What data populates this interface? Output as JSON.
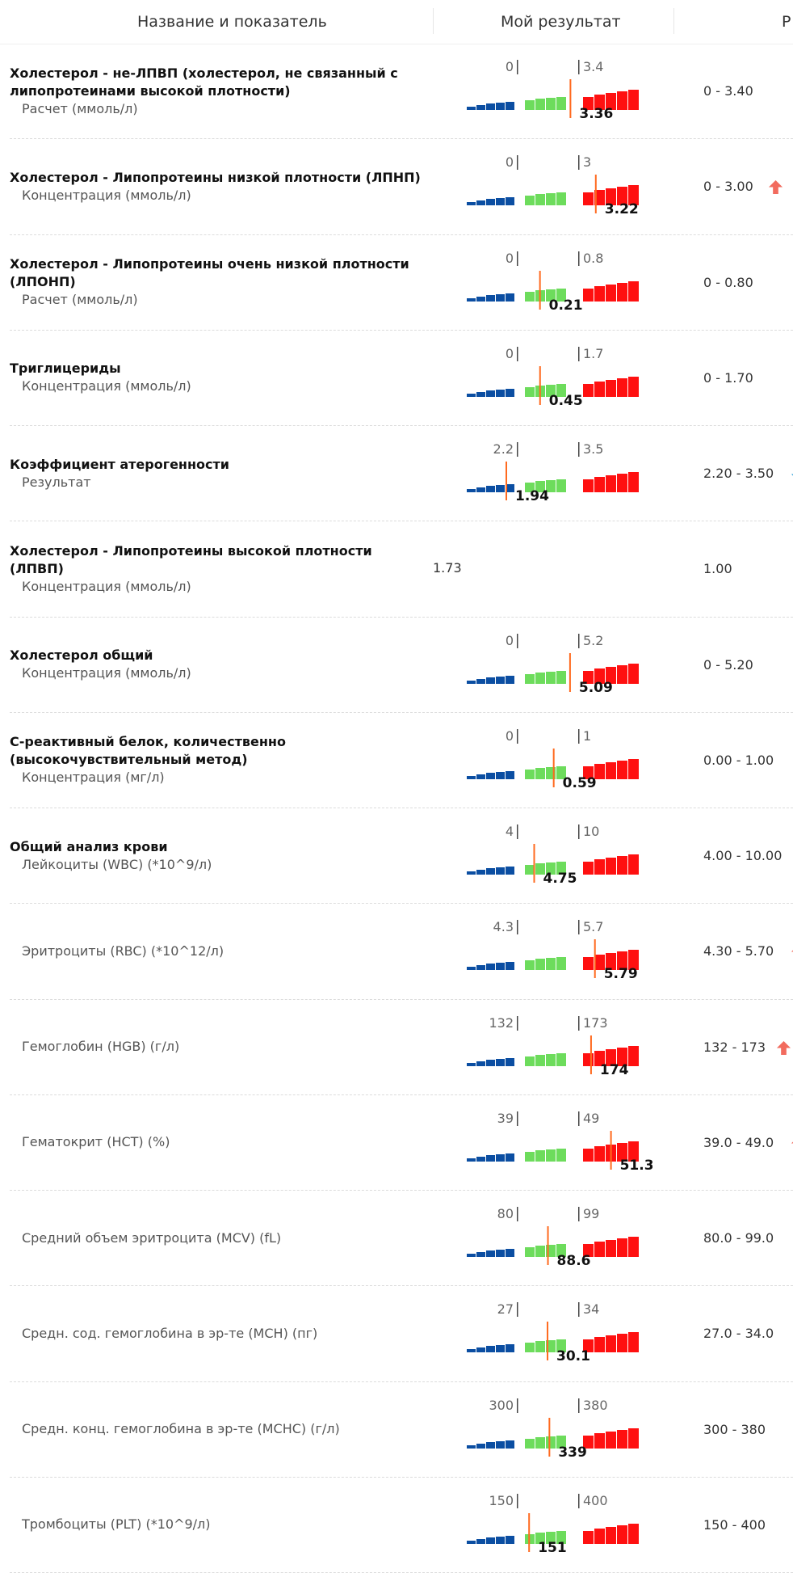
{
  "header": {
    "col_name": "Название и показатель",
    "col_result": "Мой результат",
    "col_ref": "Р"
  },
  "colors": {
    "low": "#0b4ea2",
    "normal": "#6ddc5c",
    "high": "#ff1010",
    "marker": "#ff6a1f",
    "arrow_up": "#f26b5e",
    "arrow_down": "#2a9fd8"
  },
  "rows": [
    {
      "title": "Холестерол - не-ЛПВП (холестерол, не связанный с",
      "title2": "липопротеинами высокой плотности)",
      "sub": "Расчет (ммоль/л)",
      "gauge": true,
      "low": "0",
      "high": "3.4",
      "value": "3.36",
      "value_num": 3.36,
      "low_num": 0,
      "high_num": 3.4,
      "ref": "0 - 3.40",
      "flag": ""
    },
    {
      "title": "Холестерол - Липопротеины низкой плотности (ЛПНП)",
      "sub": "Концентрация (ммоль/л)",
      "gauge": true,
      "low": "0",
      "high": "3",
      "value": "3.22",
      "value_num": 3.22,
      "low_num": 0,
      "high_num": 3,
      "ref": "0 - 3.00",
      "flag": "up"
    },
    {
      "title": "Холестерол - Липопротеины очень низкой плотности",
      "title2": "(ЛПОНП)",
      "sub": "Расчет (ммоль/л)",
      "gauge": true,
      "low": "0",
      "high": "0.8",
      "value": "0.21",
      "value_num": 0.21,
      "low_num": 0,
      "high_num": 0.8,
      "ref": "0 - 0.80",
      "flag": ""
    },
    {
      "title": "Триглицериды",
      "sub": "Концентрация (ммоль/л)",
      "gauge": true,
      "low": "0",
      "high": "1.7",
      "value": "0.45",
      "value_num": 0.45,
      "low_num": 0,
      "high_num": 1.7,
      "ref": "0 - 1.70",
      "flag": ""
    },
    {
      "title": "Коэффициент атерогенности",
      "sub": "Результат",
      "gauge": true,
      "low": "2.2",
      "high": "3.5",
      "value": "1.94",
      "value_num": 1.94,
      "low_num": 2.2,
      "high_num": 3.5,
      "ref": "2.20 - 3.50",
      "flag": "down"
    },
    {
      "title": "Холестерол - Липопротеины высокой плотности (ЛПВП)",
      "sub": "Концентрация (ммоль/л)",
      "gauge": false,
      "value": "1.73",
      "ref": "1.00",
      "flag": ""
    },
    {
      "title": "Холестерол общий",
      "sub": "Концентрация (ммоль/л)",
      "gauge": true,
      "low": "0",
      "high": "5.2",
      "value": "5.09",
      "value_num": 5.09,
      "low_num": 0,
      "high_num": 5.2,
      "ref": "0 - 5.20",
      "flag": ""
    },
    {
      "title": "С-реактивный белок, количественно",
      "title2": "(высокочувствительный метод)",
      "sub": "Концентрация (мг/л)",
      "gauge": true,
      "low": "0",
      "high": "1",
      "value": "0.59",
      "value_num": 0.59,
      "low_num": 0,
      "high_num": 1,
      "ref": "0.00 - 1.00",
      "flag": ""
    },
    {
      "title": "Общий анализ крови",
      "sub": "Лейкоциты (WBC) (*10^9/л)",
      "gauge": true,
      "low": "4",
      "high": "10",
      "value": "4.75",
      "value_num": 4.75,
      "low_num": 4,
      "high_num": 10,
      "ref": "4.00 - 10.00",
      "flag": ""
    },
    {
      "title": "",
      "sub": "Эритроциты (RBC) (*10^12/л)",
      "gauge": true,
      "low": "4.3",
      "high": "5.7",
      "value": "5.79",
      "value_num": 5.79,
      "low_num": 4.3,
      "high_num": 5.7,
      "ref": "4.30 - 5.70",
      "flag": "up"
    },
    {
      "title": "",
      "sub": "Гемоглобин (HGB) (г/л)",
      "gauge": true,
      "low": "132",
      "high": "173",
      "value": "174",
      "value_num": 174,
      "low_num": 132,
      "high_num": 173,
      "ref": "132 - 173",
      "flag": "up"
    },
    {
      "title": "",
      "sub": "Гематокрит (HCT) (%)",
      "gauge": true,
      "low": "39",
      "high": "49",
      "value": "51.3",
      "value_num": 51.3,
      "low_num": 39,
      "high_num": 49,
      "ref": "39.0 - 49.0",
      "flag": "up"
    },
    {
      "title": "",
      "sub": "Средний объем эритроцита (MCV) (fL)",
      "gauge": true,
      "low": "80",
      "high": "99",
      "value": "88.6",
      "value_num": 88.6,
      "low_num": 80,
      "high_num": 99,
      "ref": "80.0 - 99.0",
      "flag": ""
    },
    {
      "title": "",
      "sub": "Средн. сод. гемоглобина в эр-те (MCH) (пг)",
      "gauge": true,
      "low": "27",
      "high": "34",
      "value": "30.1",
      "value_num": 30.1,
      "low_num": 27,
      "high_num": 34,
      "ref": "27.0 - 34.0",
      "flag": ""
    },
    {
      "title": "",
      "sub": "Средн. конц. гемоглобина в эр-те (MCHC) (г/л)",
      "gauge": true,
      "low": "300",
      "high": "380",
      "value": "339",
      "value_num": 339,
      "low_num": 300,
      "high_num": 380,
      "ref": "300 - 380",
      "flag": ""
    },
    {
      "title": "",
      "sub": "Тромбоциты (PLT) (*10^9/л)",
      "gauge": true,
      "low": "150",
      "high": "400",
      "value": "151",
      "value_num": 151,
      "low_num": 150,
      "high_num": 400,
      "ref": "150 - 400",
      "flag": ""
    }
  ]
}
